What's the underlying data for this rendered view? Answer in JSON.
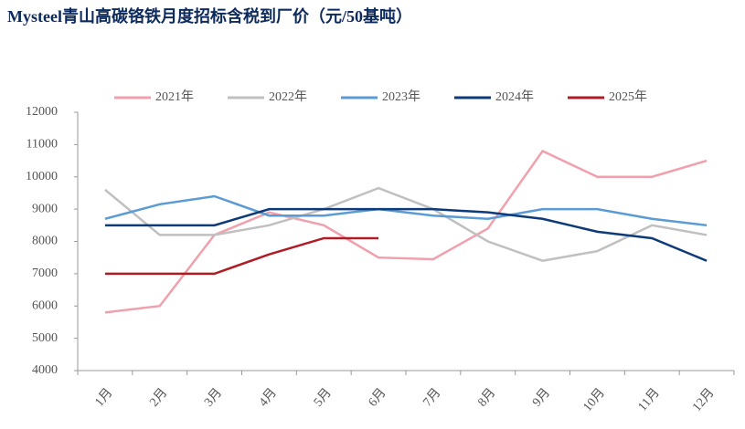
{
  "chart_data": {
    "type": "line",
    "title": "Mysteel青山高碳铬铁月度招标含税到厂价（元/50基吨）",
    "categories": [
      "1月",
      "2月",
      "3月",
      "4月",
      "5月",
      "6月",
      "7月",
      "8月",
      "9月",
      "10月",
      "11月",
      "12月"
    ],
    "series": [
      {
        "name": "2021年",
        "color": "#f0a0ac",
        "values": [
          5800,
          6000,
          8200,
          8900,
          8500,
          7500,
          7450,
          8400,
          10800,
          10000,
          10000,
          10500
        ]
      },
      {
        "name": "2022年",
        "color": "#c0c0c0",
        "values": [
          9600,
          8200,
          8200,
          8500,
          9000,
          9650,
          9000,
          8000,
          7400,
          7700,
          8500,
          8200
        ]
      },
      {
        "name": "2023年",
        "color": "#5b9bd5",
        "values": [
          8700,
          9150,
          9400,
          8800,
          8800,
          9000,
          8800,
          8700,
          9000,
          9000,
          8700,
          8500
        ]
      },
      {
        "name": "2024年",
        "color": "#0d3a78",
        "values": [
          8500,
          8500,
          8500,
          9000,
          9000,
          9000,
          9000,
          8900,
          8700,
          8300,
          8100,
          7400
        ]
      },
      {
        "name": "2025年",
        "color": "#b01c24",
        "values": [
          7000,
          7000,
          7000,
          7600,
          8100,
          8100,
          null,
          null,
          null,
          null,
          null,
          null
        ]
      }
    ],
    "ylim": [
      4000,
      12000
    ],
    "yticks": [
      4000,
      5000,
      6000,
      7000,
      8000,
      9000,
      10000,
      11000,
      12000
    ],
    "grid": false,
    "legend": "top"
  }
}
